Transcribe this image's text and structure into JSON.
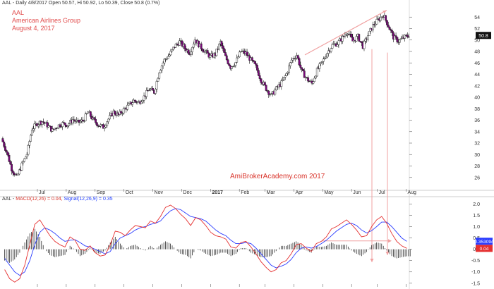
{
  "header": {
    "info_line": "AAL - Daily 4/8/2017 Open 50.57, Hi 50.92, Lo 50.39, Close 50.8 (0.7%)",
    "ticker": "AAL",
    "company": "American Airlines Group",
    "date": "August 4, 2017",
    "watermark": "AmiBrokerAcademy.com  2017"
  },
  "macd_header": {
    "prefix": "AAL - ",
    "macd": "MACD(12,26) = 0.04,",
    "signal": "Signal(12,26,9) = 0.35"
  },
  "colors": {
    "bull": "#ffffff",
    "bear": "#7a0a7a",
    "wick": "#111111",
    "macd": "#e53030",
    "signal": "#2a3cff",
    "trend": "#f0a0a0",
    "hist": "#111111"
  },
  "chart_data": [
    {
      "type": "candlestick",
      "title": "AAL Daily",
      "ylim": [
        24,
        56
      ],
      "y_ticks": [
        26,
        28,
        30,
        32,
        34,
        36,
        38,
        40,
        42,
        44,
        46,
        48,
        50,
        52,
        54
      ],
      "x_ticks": [
        "Jul",
        "Aug",
        "Sep",
        "Oct",
        "Nov",
        "Dec",
        "2017",
        "Feb",
        "Mar",
        "Apr",
        "May",
        "Jun",
        "Jul",
        "Aug"
      ],
      "last_price_label": "50.8",
      "weekly_close": [
        32.8,
        30.5,
        27.5,
        26.0,
        28.2,
        30.1,
        34.5,
        35.4,
        35.8,
        35.1,
        34.2,
        35.0,
        35.4,
        35.2,
        36.1,
        35.6,
        35.9,
        37.4,
        36.1,
        35.2,
        34.8,
        36.2,
        37.4,
        36.9,
        37.8,
        38.6,
        39.4,
        39.1,
        40.1,
        41.4,
        40.9,
        44.6,
        46.5,
        47.4,
        48.9,
        49.7,
        48.6,
        47.8,
        50.1,
        48.9,
        48.0,
        47.1,
        47.5,
        49.6,
        47.0,
        45.3,
        46.1,
        48.0,
        47.7,
        46.5,
        45.3,
        43.0,
        41.5,
        40.3,
        41.5,
        42.5,
        44.1,
        46.5,
        47.4,
        44.5,
        43.2,
        42.4,
        44.7,
        46.1,
        47.8,
        49.1,
        49.4,
        50.4,
        51.5,
        49.8,
        50.6,
        48.9,
        50.8,
        52.5,
        53.5,
        54.4,
        52.5,
        50.5,
        49.8,
        50.4,
        50.8
      ]
    },
    {
      "type": "line",
      "title": "MACD(12,26,9)",
      "ylim": [
        -1.6,
        2.2
      ],
      "y_ticks": [
        -1.5,
        -1.0,
        -0.5,
        0.0,
        0.5,
        1.0,
        1.5,
        2.0
      ],
      "x_ticks": [
        "Jul",
        "Aug",
        "Sep",
        "Oct",
        "Nov",
        "Dec",
        "2017",
        "Feb",
        "Mar",
        "Apr",
        "May",
        "Jun",
        "Jul",
        "Aug"
      ],
      "series": [
        {
          "name": "MACD(12,26)",
          "values": [
            -0.9,
            -1.3,
            -1.45,
            -1.3,
            -0.7,
            0.2,
            1.1,
            1.3,
            0.95,
            0.6,
            0.35,
            0.2,
            0.1,
            0.55,
            0.4,
            0.0,
            -0.05,
            0.15,
            -0.15,
            -0.3,
            -0.25,
            0.2,
            0.8,
            0.75,
            0.6,
            0.85,
            1.05,
            1.0,
            0.95,
            1.25,
            1.15,
            1.45,
            1.85,
            1.95,
            1.8,
            1.55,
            1.35,
            1.05,
            1.4,
            1.3,
            1.05,
            0.75,
            0.6,
            0.55,
            0.45,
            0.1,
            0.05,
            0.3,
            0.35,
            0.1,
            -0.2,
            -0.55,
            -0.8,
            -1.0,
            -0.9,
            -0.6,
            -0.5,
            -0.2,
            0.2,
            0.25,
            0.05,
            -0.1,
            0.25,
            0.35,
            0.55,
            0.9,
            1.0,
            1.15,
            1.3,
            1.1,
            0.85,
            0.55,
            0.6,
            1.0,
            1.3,
            1.45,
            1.15,
            0.7,
            0.35,
            0.15,
            0.04
          ]
        },
        {
          "name": "Signal(12,26,9)",
          "values": [
            -0.4,
            -0.7,
            -1.0,
            -1.15,
            -1.0,
            -0.5,
            0.2,
            0.75,
            0.95,
            0.85,
            0.7,
            0.5,
            0.35,
            0.4,
            0.42,
            0.3,
            0.15,
            0.1,
            0.0,
            -0.1,
            -0.2,
            -0.1,
            0.25,
            0.5,
            0.6,
            0.7,
            0.85,
            0.95,
            1.0,
            1.1,
            1.15,
            1.25,
            1.5,
            1.7,
            1.8,
            1.75,
            1.6,
            1.45,
            1.4,
            1.35,
            1.25,
            1.05,
            0.85,
            0.7,
            0.6,
            0.4,
            0.25,
            0.25,
            0.3,
            0.25,
            0.05,
            -0.2,
            -0.45,
            -0.7,
            -0.82,
            -0.75,
            -0.65,
            -0.45,
            -0.15,
            0.05,
            0.1,
            0.05,
            0.12,
            0.25,
            0.4,
            0.6,
            0.8,
            0.95,
            1.1,
            1.15,
            1.05,
            0.85,
            0.72,
            0.82,
            1.0,
            1.2,
            1.2,
            1.0,
            0.75,
            0.5,
            0.35
          ]
        }
      ],
      "macd_label": "0.04",
      "signal_label": "0.353094"
    }
  ]
}
